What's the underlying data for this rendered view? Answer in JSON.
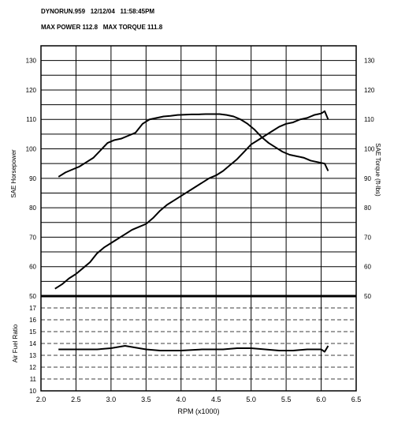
{
  "header": {
    "run_id": "DYNORUN.959",
    "date": "12/12/04",
    "time": "11:58:45PM",
    "max_power_label": "MAX POWER 112.8",
    "max_torque_label": "MAX TORQUE 111.8"
  },
  "chart_data": [
    {
      "type": "line",
      "xlabel": "RPM (x1000)",
      "ylabel": "SAE Horsepower",
      "y2label": "SAE Torque (ft-lbs)",
      "xlim": [
        2.0,
        6.5
      ],
      "ylim": [
        50,
        135
      ],
      "y2lim": [
        50,
        135
      ],
      "x_ticks": [
        "2.0",
        "2.5",
        "3.0",
        "3.5",
        "4.0",
        "4.5",
        "5.0",
        "5.5",
        "6.0",
        "6.5"
      ],
      "y_ticks": [
        "50",
        "60",
        "70",
        "80",
        "90",
        "100",
        "110",
        "120",
        "130"
      ],
      "grid": true,
      "series": [
        {
          "name": "SAE Horsepower",
          "x": [
            2.2,
            2.3,
            2.4,
            2.5,
            2.6,
            2.7,
            2.8,
            2.9,
            3.0,
            3.1,
            3.2,
            3.3,
            3.4,
            3.5,
            3.6,
            3.7,
            3.8,
            3.9,
            4.0,
            4.1,
            4.2,
            4.3,
            4.4,
            4.5,
            4.6,
            4.7,
            4.8,
            4.9,
            5.0,
            5.1,
            5.2,
            5.3,
            5.4,
            5.5,
            5.6,
            5.7,
            5.8,
            5.9,
            6.0,
            6.05,
            6.1
          ],
          "values": [
            52.5,
            54,
            56,
            57.5,
            59.5,
            61.5,
            64.5,
            66.5,
            68,
            69.5,
            71,
            72.5,
            73.5,
            74.5,
            76.5,
            79,
            81,
            82.5,
            84,
            85.5,
            87,
            88.5,
            90,
            91,
            92.5,
            94.5,
            96.5,
            99,
            101.5,
            103,
            104.5,
            106,
            107.5,
            108.5,
            109,
            110,
            110.5,
            111.5,
            112,
            112.8,
            110
          ]
        },
        {
          "name": "SAE Torque (ft-lbs)",
          "x": [
            2.25,
            2.35,
            2.45,
            2.55,
            2.65,
            2.75,
            2.85,
            2.95,
            3.05,
            3.15,
            3.25,
            3.35,
            3.45,
            3.55,
            3.65,
            3.75,
            3.85,
            3.95,
            4.05,
            4.15,
            4.25,
            4.35,
            4.45,
            4.55,
            4.65,
            4.75,
            4.85,
            4.95,
            5.05,
            5.15,
            5.25,
            5.35,
            5.45,
            5.55,
            5.65,
            5.75,
            5.85,
            5.95,
            6.05,
            6.1
          ],
          "values": [
            90.5,
            92,
            93,
            94,
            95.5,
            97,
            99.5,
            102,
            103,
            103.5,
            104.5,
            105.5,
            108.5,
            110,
            110.5,
            111,
            111.2,
            111.5,
            111.6,
            111.7,
            111.7,
            111.8,
            111.8,
            111.8,
            111.5,
            111,
            110,
            108.5,
            106.5,
            104,
            102,
            100.5,
            99,
            98,
            97.5,
            97,
            96,
            95.5,
            95,
            92.5
          ]
        }
      ]
    },
    {
      "type": "line",
      "xlabel": "RPM (x1000)",
      "ylabel": "Air Fuel Ratio",
      "xlim": [
        2.0,
        6.5
      ],
      "ylim": [
        10,
        18
      ],
      "y_ticks": [
        "10",
        "11",
        "12",
        "13",
        "14",
        "15",
        "16",
        "17"
      ],
      "grid": true,
      "series": [
        {
          "name": "Air Fuel Ratio",
          "x": [
            2.25,
            2.5,
            2.8,
            3.0,
            3.1,
            3.2,
            3.3,
            3.5,
            3.7,
            4.0,
            4.3,
            4.6,
            4.8,
            5.0,
            5.2,
            5.4,
            5.6,
            5.8,
            6.0,
            6.05,
            6.1
          ],
          "values": [
            13.5,
            13.5,
            13.5,
            13.6,
            13.7,
            13.8,
            13.7,
            13.5,
            13.4,
            13.4,
            13.5,
            13.5,
            13.6,
            13.6,
            13.5,
            13.4,
            13.4,
            13.5,
            13.5,
            13.3,
            13.8
          ]
        }
      ]
    }
  ]
}
